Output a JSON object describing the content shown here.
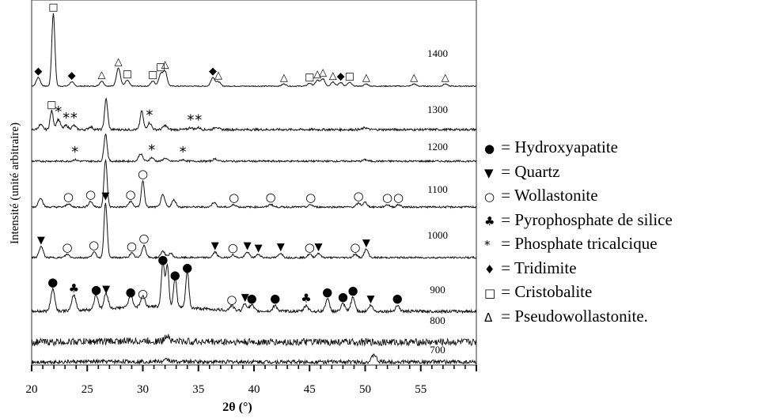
{
  "chart_data": {
    "type": "line",
    "xlabel": "2θ (°)",
    "ylabel": "Intensité (unité arbitraire)",
    "xlim": [
      20,
      60
    ],
    "xticks": [
      "20",
      "25",
      "30",
      "35",
      "40",
      "45",
      "50",
      "55"
    ],
    "grid": false,
    "legend_position": "right",
    "series": [
      {
        "name": "1400",
        "baseline": 1400,
        "peaks": [
          [
            20.6,
            0.12
          ],
          [
            21.95,
            1.0
          ],
          [
            23.6,
            0.06
          ],
          [
            26.3,
            0.07
          ],
          [
            27.8,
            0.25
          ],
          [
            28.6,
            0.08
          ],
          [
            30.9,
            0.07
          ],
          [
            31.6,
            0.16
          ],
          [
            32.0,
            0.2
          ],
          [
            36.3,
            0.12
          ],
          [
            36.8,
            0.06
          ],
          [
            42.7,
            0.03
          ],
          [
            45.0,
            0.04
          ],
          [
            45.7,
            0.08
          ],
          [
            46.2,
            0.1
          ],
          [
            47.1,
            0.06
          ],
          [
            47.8,
            0.05
          ],
          [
            48.6,
            0.05
          ],
          [
            50.1,
            0.03
          ],
          [
            54.4,
            0.03
          ],
          [
            57.2,
            0.03
          ]
        ]
      },
      {
        "name": "1300",
        "baseline": 1300,
        "peaks": [
          [
            20.8,
            0.14
          ],
          [
            21.8,
            0.55
          ],
          [
            22.4,
            0.3
          ],
          [
            23.1,
            0.12
          ],
          [
            23.8,
            0.12
          ],
          [
            25.3,
            0.08
          ],
          [
            26.7,
            0.9
          ],
          [
            29.9,
            0.55
          ],
          [
            30.6,
            0.2
          ],
          [
            32.0,
            0.12
          ],
          [
            34.3,
            0.06
          ],
          [
            35.0,
            0.06
          ],
          [
            36.6,
            0.08
          ],
          [
            50.0,
            0.06
          ]
        ]
      },
      {
        "name": "1200",
        "baseline": 1200,
        "peaks": [
          [
            23.9,
            0.05
          ],
          [
            26.65,
            0.92
          ],
          [
            29.8,
            0.25
          ],
          [
            30.8,
            0.12
          ],
          [
            32.0,
            0.1
          ],
          [
            33.6,
            0.05
          ],
          [
            36.5,
            0.08
          ],
          [
            50.0,
            0.05
          ]
        ]
      },
      {
        "name": "1100",
        "baseline": 1100,
        "peaks": [
          [
            20.8,
            0.2
          ],
          [
            23.3,
            0.07
          ],
          [
            25.3,
            0.12
          ],
          [
            26.65,
            1.0
          ],
          [
            28.9,
            0.12
          ],
          [
            30.0,
            0.55
          ],
          [
            31.8,
            0.25
          ],
          [
            32.8,
            0.15
          ],
          [
            36.4,
            0.1
          ],
          [
            38.2,
            0.05
          ],
          [
            41.5,
            0.06
          ],
          [
            45.1,
            0.05
          ],
          [
            49.4,
            0.08
          ],
          [
            50.0,
            0.1
          ],
          [
            52.0,
            0.05
          ],
          [
            53.0,
            0.05
          ]
        ]
      },
      {
        "name": "1000",
        "baseline": 1000,
        "peaks": [
          [
            20.85,
            0.2
          ],
          [
            23.2,
            0.06
          ],
          [
            25.6,
            0.1
          ],
          [
            26.65,
            1.0
          ],
          [
            29.0,
            0.08
          ],
          [
            30.1,
            0.22
          ],
          [
            31.8,
            0.12
          ],
          [
            32.5,
            0.08
          ],
          [
            36.5,
            0.1
          ],
          [
            38.1,
            0.05
          ],
          [
            39.4,
            0.1
          ],
          [
            40.4,
            0.06
          ],
          [
            42.4,
            0.08
          ],
          [
            45.0,
            0.06
          ],
          [
            45.8,
            0.08
          ],
          [
            49.1,
            0.06
          ],
          [
            50.1,
            0.15
          ]
        ]
      },
      {
        "name": "900",
        "baseline": 900,
        "peaks": [
          [
            21.9,
            0.45
          ],
          [
            23.8,
            0.32
          ],
          [
            25.8,
            0.3
          ],
          [
            26.7,
            0.32
          ],
          [
            28.9,
            0.25
          ],
          [
            30.0,
            0.22
          ],
          [
            31.8,
            0.9
          ],
          [
            32.2,
            0.85
          ],
          [
            32.9,
            0.6
          ],
          [
            34.0,
            0.75
          ],
          [
            38.0,
            0.1
          ],
          [
            39.2,
            0.15
          ],
          [
            39.8,
            0.12
          ],
          [
            41.9,
            0.12
          ],
          [
            44.7,
            0.12
          ],
          [
            46.6,
            0.25
          ],
          [
            48.0,
            0.15
          ],
          [
            48.9,
            0.28
          ],
          [
            50.5,
            0.12
          ],
          [
            52.9,
            0.12
          ]
        ]
      },
      {
        "name": "800",
        "baseline": 800,
        "peaks": [
          [
            32.2,
            0.3
          ]
        ]
      },
      {
        "name": "700",
        "baseline": 700,
        "peaks": [
          [
            32.2,
            0.12
          ],
          [
            50.8,
            0.4
          ]
        ]
      }
    ],
    "phase_markers": [
      {
        "series": "1400",
        "markers": [
          [
            "◆",
            20.6
          ],
          [
            "□",
            21.95
          ],
          [
            "◆",
            23.6
          ],
          [
            "△",
            26.3
          ],
          [
            "△",
            27.8
          ],
          [
            "□",
            28.6
          ],
          [
            "□",
            30.9
          ],
          [
            "□",
            31.6
          ],
          [
            "△",
            32.0
          ],
          [
            "◆",
            36.3
          ],
          [
            "△",
            36.8
          ],
          [
            "△",
            42.7
          ],
          [
            "□",
            45.0
          ],
          [
            "△",
            45.7
          ],
          [
            "△",
            46.2
          ],
          [
            "△",
            47.1
          ],
          [
            "◆",
            47.8
          ],
          [
            "□",
            48.6
          ],
          [
            "△",
            50.1
          ],
          [
            "△",
            54.4
          ],
          [
            "△",
            57.2
          ]
        ]
      },
      {
        "series": "1300",
        "markers": [
          [
            "□",
            21.8
          ],
          [
            "*",
            22.4
          ],
          [
            "*",
            23.1
          ],
          [
            "*",
            23.8
          ],
          [
            "*",
            30.6
          ],
          [
            "*",
            34.3
          ],
          [
            "*",
            35.0
          ]
        ]
      },
      {
        "series": "1200",
        "markers": [
          [
            "*",
            23.9
          ],
          [
            "*",
            30.8
          ],
          [
            "*",
            33.6
          ]
        ]
      },
      {
        "series": "1100",
        "markers": [
          [
            "○",
            23.3
          ],
          [
            "○",
            25.3
          ],
          [
            "○",
            28.9
          ],
          [
            "○",
            30.0
          ],
          [
            "○",
            38.2
          ],
          [
            "○",
            41.5
          ],
          [
            "○",
            45.1
          ],
          [
            "○",
            49.4
          ],
          [
            "○",
            52.0
          ],
          [
            "○",
            53.0
          ]
        ]
      },
      {
        "series": "1000",
        "markers": [
          [
            "▼",
            20.85
          ],
          [
            "○",
            23.2
          ],
          [
            "○",
            25.6
          ],
          [
            "▼",
            26.65
          ],
          [
            "○",
            29.0
          ],
          [
            "○",
            30.1
          ],
          [
            "▼",
            36.5
          ],
          [
            "○",
            38.1
          ],
          [
            "▼",
            39.4
          ],
          [
            "▼",
            40.4
          ],
          [
            "▼",
            42.4
          ],
          [
            "○",
            45.0
          ],
          [
            "▼",
            45.8
          ],
          [
            "○",
            49.1
          ],
          [
            "▼",
            50.1
          ]
        ]
      },
      {
        "series": "900",
        "markers": [
          [
            "●",
            21.9
          ],
          [
            "♣",
            23.8
          ],
          [
            "●",
            25.8
          ],
          [
            "▼",
            26.7
          ],
          [
            "●",
            28.9
          ],
          [
            "○",
            30.0
          ],
          [
            "●",
            31.8
          ],
          [
            "●",
            32.9
          ],
          [
            "●",
            34.0
          ],
          [
            "○",
            38.0
          ],
          [
            "▼",
            39.2
          ],
          [
            "●",
            39.8
          ],
          [
            "●",
            41.9
          ],
          [
            "♣",
            44.7
          ],
          [
            "●",
            46.6
          ],
          [
            "●",
            48.0
          ],
          [
            "●",
            48.9
          ],
          [
            "▼",
            50.5
          ],
          [
            "●",
            52.9
          ]
        ]
      }
    ]
  },
  "legend": {
    "items": [
      {
        "symbol": "●",
        "label": "= Hydroxyapatite"
      },
      {
        "symbol": "▼",
        "label": "= Quartz"
      },
      {
        "symbol": "○",
        "label": "= Wollastonite"
      },
      {
        "symbol": "♣",
        "label": "= Pyrophosphate de silice"
      },
      {
        "symbol": "*",
        "label": "= Phosphate tricalcique"
      },
      {
        "symbol": "♦",
        "label": "= Tridimite"
      },
      {
        "symbol": "□",
        "label": "= Cristobalite"
      },
      {
        "symbol": "Δ",
        "label": "= Pseudowollastonite."
      }
    ]
  }
}
